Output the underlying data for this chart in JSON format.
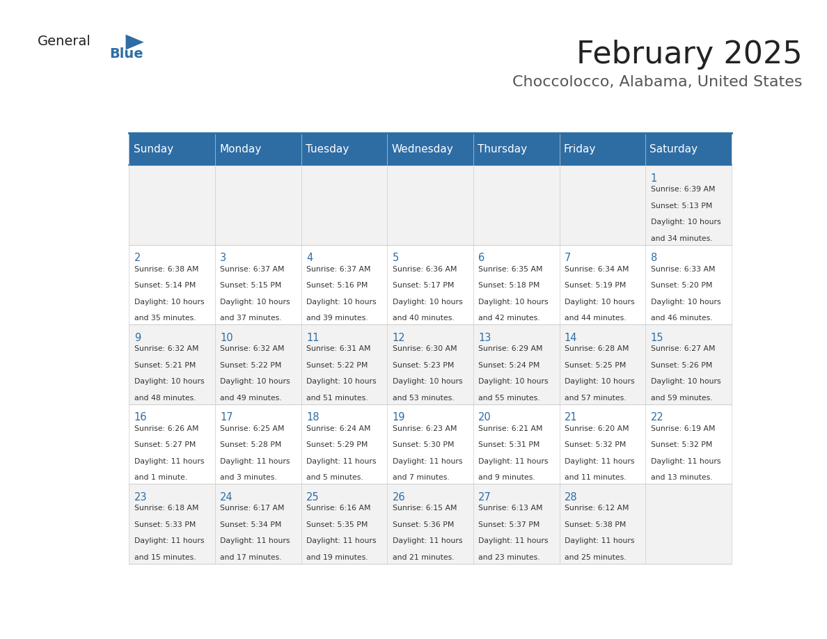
{
  "title": "February 2025",
  "subtitle": "Choccolocco, Alabama, United States",
  "header_bg": "#2E6DA4",
  "header_text": "#FFFFFF",
  "day_names": [
    "Sunday",
    "Monday",
    "Tuesday",
    "Wednesday",
    "Thursday",
    "Friday",
    "Saturday"
  ],
  "row_bg_odd": "#F2F2F2",
  "row_bg_even": "#FFFFFF",
  "cell_text_color": "#333333",
  "day_num_color": "#2E6DA4",
  "grid_color": "#CCCCCC",
  "logo_general_color": "#222222",
  "logo_blue_color": "#2E6DA4",
  "days": [
    {
      "day": 1,
      "col": 6,
      "row": 0,
      "sunrise": "6:39 AM",
      "sunset": "5:13 PM",
      "daylight": "10 hours and 34 minutes."
    },
    {
      "day": 2,
      "col": 0,
      "row": 1,
      "sunrise": "6:38 AM",
      "sunset": "5:14 PM",
      "daylight": "10 hours and 35 minutes."
    },
    {
      "day": 3,
      "col": 1,
      "row": 1,
      "sunrise": "6:37 AM",
      "sunset": "5:15 PM",
      "daylight": "10 hours and 37 minutes."
    },
    {
      "day": 4,
      "col": 2,
      "row": 1,
      "sunrise": "6:37 AM",
      "sunset": "5:16 PM",
      "daylight": "10 hours and 39 minutes."
    },
    {
      "day": 5,
      "col": 3,
      "row": 1,
      "sunrise": "6:36 AM",
      "sunset": "5:17 PM",
      "daylight": "10 hours and 40 minutes."
    },
    {
      "day": 6,
      "col": 4,
      "row": 1,
      "sunrise": "6:35 AM",
      "sunset": "5:18 PM",
      "daylight": "10 hours and 42 minutes."
    },
    {
      "day": 7,
      "col": 5,
      "row": 1,
      "sunrise": "6:34 AM",
      "sunset": "5:19 PM",
      "daylight": "10 hours and 44 minutes."
    },
    {
      "day": 8,
      "col": 6,
      "row": 1,
      "sunrise": "6:33 AM",
      "sunset": "5:20 PM",
      "daylight": "10 hours and 46 minutes."
    },
    {
      "day": 9,
      "col": 0,
      "row": 2,
      "sunrise": "6:32 AM",
      "sunset": "5:21 PM",
      "daylight": "10 hours and 48 minutes."
    },
    {
      "day": 10,
      "col": 1,
      "row": 2,
      "sunrise": "6:32 AM",
      "sunset": "5:22 PM",
      "daylight": "10 hours and 49 minutes."
    },
    {
      "day": 11,
      "col": 2,
      "row": 2,
      "sunrise": "6:31 AM",
      "sunset": "5:22 PM",
      "daylight": "10 hours and 51 minutes."
    },
    {
      "day": 12,
      "col": 3,
      "row": 2,
      "sunrise": "6:30 AM",
      "sunset": "5:23 PM",
      "daylight": "10 hours and 53 minutes."
    },
    {
      "day": 13,
      "col": 4,
      "row": 2,
      "sunrise": "6:29 AM",
      "sunset": "5:24 PM",
      "daylight": "10 hours and 55 minutes."
    },
    {
      "day": 14,
      "col": 5,
      "row": 2,
      "sunrise": "6:28 AM",
      "sunset": "5:25 PM",
      "daylight": "10 hours and 57 minutes."
    },
    {
      "day": 15,
      "col": 6,
      "row": 2,
      "sunrise": "6:27 AM",
      "sunset": "5:26 PM",
      "daylight": "10 hours and 59 minutes."
    },
    {
      "day": 16,
      "col": 0,
      "row": 3,
      "sunrise": "6:26 AM",
      "sunset": "5:27 PM",
      "daylight": "11 hours and 1 minute."
    },
    {
      "day": 17,
      "col": 1,
      "row": 3,
      "sunrise": "6:25 AM",
      "sunset": "5:28 PM",
      "daylight": "11 hours and 3 minutes."
    },
    {
      "day": 18,
      "col": 2,
      "row": 3,
      "sunrise": "6:24 AM",
      "sunset": "5:29 PM",
      "daylight": "11 hours and 5 minutes."
    },
    {
      "day": 19,
      "col": 3,
      "row": 3,
      "sunrise": "6:23 AM",
      "sunset": "5:30 PM",
      "daylight": "11 hours and 7 minutes."
    },
    {
      "day": 20,
      "col": 4,
      "row": 3,
      "sunrise": "6:21 AM",
      "sunset": "5:31 PM",
      "daylight": "11 hours and 9 minutes."
    },
    {
      "day": 21,
      "col": 5,
      "row": 3,
      "sunrise": "6:20 AM",
      "sunset": "5:32 PM",
      "daylight": "11 hours and 11 minutes."
    },
    {
      "day": 22,
      "col": 6,
      "row": 3,
      "sunrise": "6:19 AM",
      "sunset": "5:32 PM",
      "daylight": "11 hours and 13 minutes."
    },
    {
      "day": 23,
      "col": 0,
      "row": 4,
      "sunrise": "6:18 AM",
      "sunset": "5:33 PM",
      "daylight": "11 hours and 15 minutes."
    },
    {
      "day": 24,
      "col": 1,
      "row": 4,
      "sunrise": "6:17 AM",
      "sunset": "5:34 PM",
      "daylight": "11 hours and 17 minutes."
    },
    {
      "day": 25,
      "col": 2,
      "row": 4,
      "sunrise": "6:16 AM",
      "sunset": "5:35 PM",
      "daylight": "11 hours and 19 minutes."
    },
    {
      "day": 26,
      "col": 3,
      "row": 4,
      "sunrise": "6:15 AM",
      "sunset": "5:36 PM",
      "daylight": "11 hours and 21 minutes."
    },
    {
      "day": 27,
      "col": 4,
      "row": 4,
      "sunrise": "6:13 AM",
      "sunset": "5:37 PM",
      "daylight": "11 hours and 23 minutes."
    },
    {
      "day": 28,
      "col": 5,
      "row": 4,
      "sunrise": "6:12 AM",
      "sunset": "5:38 PM",
      "daylight": "11 hours and 25 minutes."
    }
  ]
}
